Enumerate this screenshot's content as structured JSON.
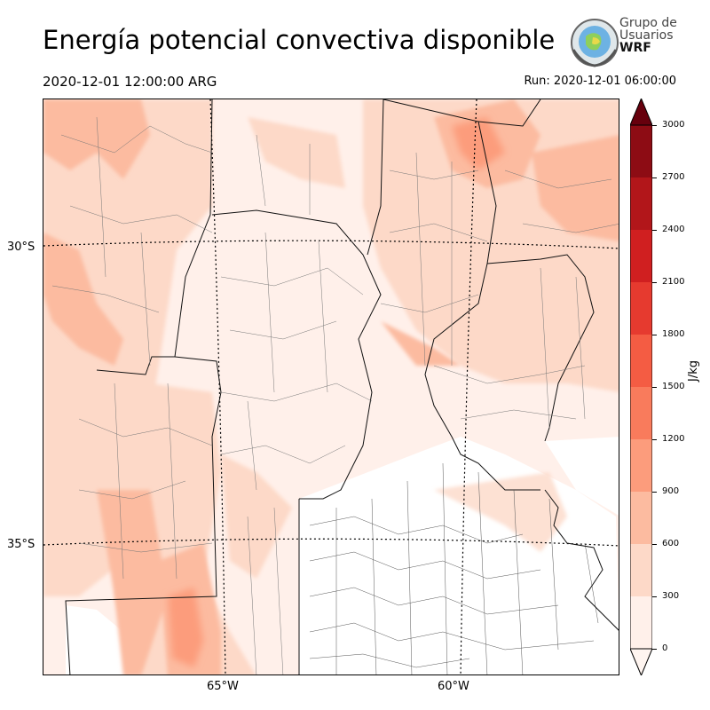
{
  "title": "Energía potencial convectiva disponible",
  "valid_time": "2020-12-01 12:00:00 ARG",
  "run_time": "Run: 2020-12-01 06:00:00",
  "logo": {
    "line1": "Grupo de",
    "line2": "Usuarios",
    "line3": "WRF"
  },
  "lat_labels": [
    "30°S",
    "35°S"
  ],
  "lon_labels": [
    "65°W",
    "60°W"
  ],
  "colorbar": {
    "unit": "J/kg",
    "ticks": [
      "0",
      "300",
      "600",
      "900",
      "1200",
      "1500",
      "1800",
      "2100",
      "2400",
      "2700",
      "3000"
    ],
    "colors": [
      "#fff0ea",
      "#fdd9c8",
      "#fcbba0",
      "#fc9c7c",
      "#f97b5c",
      "#f45c43",
      "#e63a2f",
      "#d01f20",
      "#b2161a",
      "#8d0c14",
      "#67000d"
    ],
    "extend": "both"
  }
}
